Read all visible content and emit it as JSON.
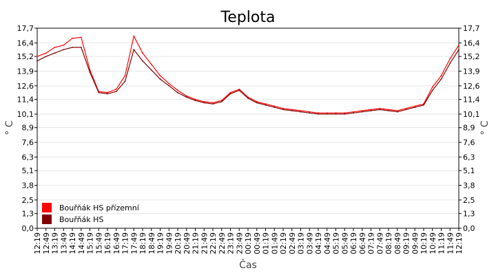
{
  "chart_data": {
    "type": "line",
    "title": "Teplota",
    "xlabel": "Čas",
    "ylabel": "° C",
    "ylabel_right": "° C",
    "ylim": [
      0,
      17.7
    ],
    "yticks": [
      "0,0",
      "1,3",
      "2,5",
      "3,8",
      "5,1",
      "6,3",
      "7,6",
      "8,9",
      "10,1",
      "11,4",
      "12,6",
      "13,9",
      "15,2",
      "16,4",
      "17,7"
    ],
    "xticks": [
      "12:19",
      "12:49",
      "13:19",
      "13:49",
      "14:19",
      "14:49",
      "15:19",
      "15:49",
      "16:19",
      "16:49",
      "17:19",
      "17:49",
      "18:19",
      "18:49",
      "19:19",
      "19:49",
      "20:19",
      "20:49",
      "21:19",
      "21:49",
      "22:19",
      "22:49",
      "23:19",
      "23:49",
      "00:19",
      "00:49",
      "01:19",
      "01:49",
      "02:19",
      "02:49",
      "03:19",
      "03:49",
      "04:19",
      "04:49",
      "05:19",
      "05:49",
      "06:19",
      "06:49",
      "07:19",
      "07:49",
      "08:19",
      "08:49",
      "09:19",
      "09:49",
      "10:19",
      "10:49",
      "11:19",
      "11:49",
      "12:19"
    ],
    "grid": true,
    "legend_position": "bottom-left",
    "series": [
      {
        "name": "Bouřňák HS přízemní",
        "color": "#ff0000",
        "points": [
          [
            "12:19",
            15.2
          ],
          [
            "12:49",
            15.5
          ],
          [
            "13:19",
            16.0
          ],
          [
            "13:49",
            16.2
          ],
          [
            "14:19",
            16.8
          ],
          [
            "14:49",
            16.9
          ],
          [
            "15:19",
            14.0
          ],
          [
            "15:49",
            12.1
          ],
          [
            "16:19",
            12.0
          ],
          [
            "16:49",
            12.3
          ],
          [
            "17:19",
            13.5
          ],
          [
            "17:49",
            17.0
          ],
          [
            "18:19",
            15.5
          ],
          [
            "18:49",
            14.5
          ],
          [
            "19:19",
            13.5
          ],
          [
            "19:49",
            12.8
          ],
          [
            "20:19",
            12.2
          ],
          [
            "20:49",
            11.7
          ],
          [
            "21:19",
            11.4
          ],
          [
            "21:49",
            11.2
          ],
          [
            "22:19",
            11.1
          ],
          [
            "22:49",
            11.3
          ],
          [
            "23:19",
            12.0
          ],
          [
            "23:49",
            12.3
          ],
          [
            "00:19",
            11.6
          ],
          [
            "00:49",
            11.2
          ],
          [
            "01:19",
            11.0
          ],
          [
            "01:49",
            10.8
          ],
          [
            "02:19",
            10.6
          ],
          [
            "02:49",
            10.5
          ],
          [
            "03:19",
            10.4
          ],
          [
            "03:49",
            10.3
          ],
          [
            "04:19",
            10.2
          ],
          [
            "04:49",
            10.2
          ],
          [
            "05:19",
            10.2
          ],
          [
            "05:49",
            10.2
          ],
          [
            "06:19",
            10.3
          ],
          [
            "06:49",
            10.4
          ],
          [
            "07:19",
            10.5
          ],
          [
            "07:49",
            10.6
          ],
          [
            "08:19",
            10.5
          ],
          [
            "08:49",
            10.4
          ],
          [
            "09:19",
            10.6
          ],
          [
            "09:49",
            10.8
          ],
          [
            "10:19",
            11.0
          ],
          [
            "10:49",
            12.5
          ],
          [
            "11:19",
            13.5
          ],
          [
            "11:49",
            15.0
          ],
          [
            "12:19",
            16.2
          ]
        ]
      },
      {
        "name": "Bouřňák HS",
        "color": "#800000",
        "points": [
          [
            "12:19",
            14.8
          ],
          [
            "12:49",
            15.2
          ],
          [
            "13:19",
            15.5
          ],
          [
            "13:49",
            15.8
          ],
          [
            "14:19",
            16.0
          ],
          [
            "14:49",
            16.0
          ],
          [
            "15:19",
            13.8
          ],
          [
            "15:49",
            12.0
          ],
          [
            "16:19",
            11.9
          ],
          [
            "16:49",
            12.1
          ],
          [
            "17:19",
            13.0
          ],
          [
            "17:49",
            15.8
          ],
          [
            "18:19",
            14.8
          ],
          [
            "18:49",
            14.0
          ],
          [
            "19:19",
            13.2
          ],
          [
            "19:49",
            12.6
          ],
          [
            "20:19",
            12.0
          ],
          [
            "20:49",
            11.6
          ],
          [
            "21:19",
            11.3
          ],
          [
            "21:49",
            11.1
          ],
          [
            "22:19",
            11.0
          ],
          [
            "22:49",
            11.2
          ],
          [
            "23:19",
            11.9
          ],
          [
            "23:49",
            12.2
          ],
          [
            "00:19",
            11.5
          ],
          [
            "00:49",
            11.1
          ],
          [
            "01:19",
            10.9
          ],
          [
            "01:49",
            10.7
          ],
          [
            "02:19",
            10.5
          ],
          [
            "02:49",
            10.4
          ],
          [
            "03:19",
            10.3
          ],
          [
            "03:49",
            10.2
          ],
          [
            "04:19",
            10.1
          ],
          [
            "04:49",
            10.1
          ],
          [
            "05:19",
            10.1
          ],
          [
            "05:49",
            10.1
          ],
          [
            "06:19",
            10.2
          ],
          [
            "06:49",
            10.3
          ],
          [
            "07:19",
            10.4
          ],
          [
            "07:49",
            10.5
          ],
          [
            "08:19",
            10.4
          ],
          [
            "08:49",
            10.3
          ],
          [
            "09:19",
            10.5
          ],
          [
            "09:49",
            10.7
          ],
          [
            "10:19",
            10.9
          ],
          [
            "10:49",
            12.2
          ],
          [
            "11:19",
            13.2
          ],
          [
            "11:49",
            14.6
          ],
          [
            "12:19",
            15.8
          ]
        ]
      }
    ]
  }
}
